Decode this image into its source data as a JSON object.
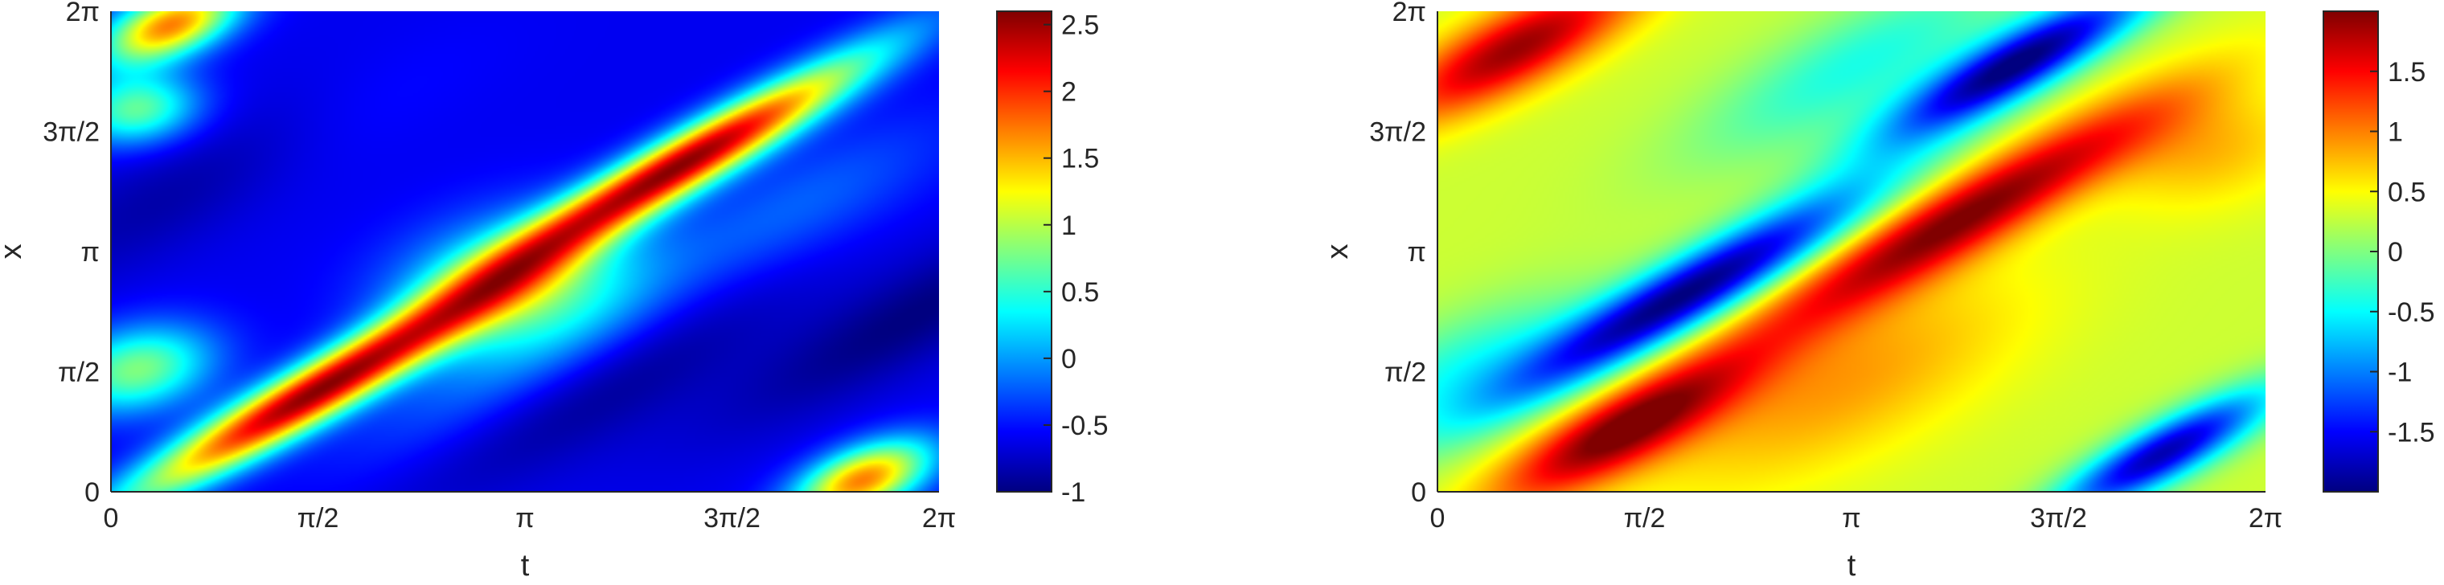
{
  "colormap": "jet",
  "chart_data": [
    {
      "type": "heatmap",
      "xlabel": "t",
      "ylabel": "x",
      "xlim": [
        0,
        6.283185307
      ],
      "ylim": [
        0,
        6.283185307
      ],
      "x_ticks": [
        "0",
        "π/2",
        "π",
        "3π/2",
        "2π"
      ],
      "y_ticks": [
        "0",
        "π/2",
        "π",
        "3π/2",
        "2π"
      ],
      "colorbar": {
        "lim": [
          -1,
          2.6
        ],
        "ticks": [
          "-1",
          "-0.5",
          "0",
          "0.5",
          "1",
          "1.5",
          "2",
          "2.5"
        ],
        "tick_values": [
          -1,
          -0.5,
          0,
          0.5,
          1,
          1.5,
          2,
          2.5
        ]
      },
      "field": {
        "description": "diagonal traveling waves in the (t, x) plane",
        "background": -0.6,
        "blobs": [
          {
            "t": 1.55,
            "x": 1.3,
            "amp": 3.1,
            "along": 1.35,
            "across": 0.22
          },
          {
            "t": 4.35,
            "x": 4.3,
            "amp": 3.1,
            "along": 1.35,
            "across": 0.22
          },
          {
            "t": 3.1,
            "x": 2.7,
            "amp": 1.4,
            "along": 0.7,
            "across": 0.55
          },
          {
            "t": 0.45,
            "x": 6.1,
            "amp": 2.3,
            "along": 0.45,
            "across": 0.25
          },
          {
            "t": 5.7,
            "x": 0.15,
            "amp": 2.3,
            "along": 0.45,
            "across": 0.25
          },
          {
            "t": 0.2,
            "x": 1.6,
            "amp": 1.4,
            "along": 0.45,
            "across": 0.35
          },
          {
            "t": 0.2,
            "x": 5.0,
            "amp": 1.3,
            "along": 0.35,
            "across": 0.3
          },
          {
            "t": 2.9,
            "x": 1.4,
            "amp": 0.4,
            "along": 1.1,
            "across": 0.4
          },
          {
            "t": 5.2,
            "x": 3.7,
            "amp": 0.4,
            "along": 1.1,
            "across": 0.4
          },
          {
            "t": 1.6,
            "x": 4.9,
            "amp": 0.3,
            "along": 1.1,
            "across": 0.4
          },
          {
            "t": 0.9,
            "x": 4.3,
            "amp": -0.4,
            "along": 1.4,
            "across": 0.4
          },
          {
            "t": 3.7,
            "x": 1.4,
            "amp": -0.4,
            "along": 1.4,
            "across": 0.4
          },
          {
            "t": 6.1,
            "x": 2.3,
            "amp": -0.4,
            "along": 1.4,
            "across": 0.35
          }
        ]
      }
    },
    {
      "type": "heatmap",
      "xlabel": "t",
      "ylabel": "x",
      "xlim": [
        0,
        6.283185307
      ],
      "ylim": [
        0,
        6.283185307
      ],
      "x_ticks": [
        "0",
        "π/2",
        "π",
        "3π/2",
        "2π"
      ],
      "y_ticks": [
        "0",
        "π/2",
        "π",
        "3π/2",
        "2π"
      ],
      "colorbar": {
        "lim": [
          -2,
          2
        ],
        "ticks": [
          "-1.5",
          "-1",
          "-0.5",
          "0",
          "0.5",
          "1",
          "1.5"
        ],
        "tick_values": [
          -1.5,
          -1,
          -0.5,
          0,
          0.5,
          1,
          1.5
        ]
      },
      "field": {
        "description": "diagonal traveling waves in the (t, x) plane",
        "background": 0.3,
        "blobs": [
          {
            "t": 4.0,
            "x": 3.6,
            "amp": 1.7,
            "along": 1.5,
            "across": 0.28
          },
          {
            "t": 1.4,
            "x": 0.8,
            "amp": 1.7,
            "along": 0.9,
            "across": 0.28
          },
          {
            "t": 0.6,
            "x": 5.8,
            "amp": 1.6,
            "along": 0.9,
            "across": 0.3
          },
          {
            "t": 3.0,
            "x": 1.4,
            "amp": 0.6,
            "along": 1.3,
            "across": 0.6
          },
          {
            "t": 5.8,
            "x": 4.5,
            "amp": 0.5,
            "along": 0.6,
            "across": 0.5
          },
          {
            "t": 1.9,
            "x": 2.6,
            "amp": -2.3,
            "along": 1.4,
            "across": 0.26
          },
          {
            "t": 4.4,
            "x": 5.6,
            "amp": -2.3,
            "along": 1.0,
            "across": 0.24
          },
          {
            "t": 5.5,
            "x": 0.5,
            "amp": -2.1,
            "along": 0.8,
            "across": 0.22
          },
          {
            "t": 0.2,
            "x": 1.6,
            "amp": -0.7,
            "along": 0.9,
            "across": 0.4
          },
          {
            "t": 3.2,
            "x": 5.6,
            "amp": -0.7,
            "along": 1.2,
            "across": 0.4
          }
        ]
      }
    }
  ]
}
